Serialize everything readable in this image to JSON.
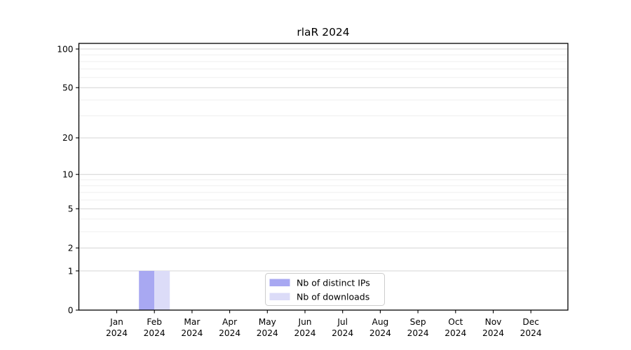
{
  "figure": {
    "background": "#ffffff"
  },
  "chart_data": {
    "type": "bar",
    "title": "rlaR 2024",
    "xlabel": "",
    "ylabel": "",
    "x": {
      "categories": [
        "Jan",
        "Feb",
        "Mar",
        "Apr",
        "May",
        "Jun",
        "Jul",
        "Aug",
        "Sep",
        "Oct",
        "Nov",
        "Dec"
      ],
      "year": "2024"
    },
    "series": [
      {
        "name": "Nb of distinct IPs",
        "color": "#a8a8f2",
        "values": [
          0,
          1,
          0,
          0,
          0,
          0,
          0,
          0,
          0,
          0,
          0,
          0
        ]
      },
      {
        "name": "Nb of downloads",
        "color": "#dcdcf8",
        "values": [
          0,
          1,
          0,
          0,
          0,
          0,
          0,
          0,
          0,
          0,
          0,
          0
        ]
      }
    ],
    "y_axis": {
      "scale": "log1p",
      "ylim": [
        0,
        110
      ],
      "major_ticks": [
        0,
        1,
        2,
        5,
        10,
        20,
        50,
        100
      ],
      "major_tick_labels": [
        "0",
        "1",
        "2",
        "5",
        "10",
        "20",
        "50",
        "100"
      ],
      "minor_gridlines": [
        3,
        4,
        6,
        7,
        8,
        9,
        30,
        40,
        60,
        70,
        80,
        90
      ]
    },
    "grid": "horizontal",
    "legend": {
      "position": "lower-center"
    }
  },
  "colors": {
    "axis": "#000000",
    "grid_major": "#d4d4d4",
    "grid_minor": "#efefef",
    "legend_border": "#cccccc",
    "legend_background": "#ffffff",
    "text": "#000000"
  }
}
